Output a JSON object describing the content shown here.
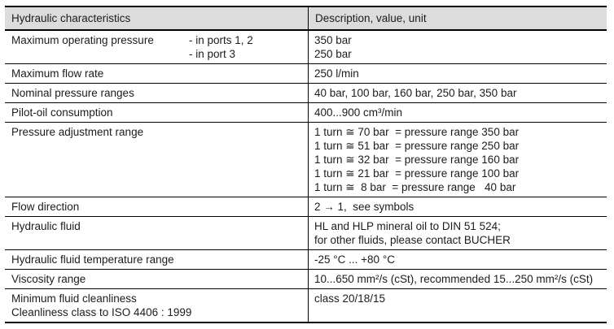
{
  "page": {
    "background": "#ffffff"
  },
  "table": {
    "header": {
      "characteristics": "Hydraulic characteristics",
      "description": "Description, value, unit"
    },
    "rows": [
      {
        "name": "maximum-operating-pressure",
        "label": "Maximum operating pressure",
        "sub_labels": [
          "- in ports 1, 2",
          "- in port 3"
        ],
        "values": [
          "350 bar",
          "250 bar"
        ]
      },
      {
        "name": "maximum-flow-rate",
        "label": "Maximum flow rate",
        "values": [
          "250 l/min"
        ]
      },
      {
        "name": "nominal-pressure-ranges",
        "label": "Nominal pressure ranges",
        "values": [
          "40 bar, 100 bar, 160 bar, 250 bar, 350 bar"
        ]
      },
      {
        "name": "pilot-oil-consumption",
        "label": "Pilot-oil consumption",
        "values": [
          "400...900 cm³/min"
        ]
      },
      {
        "name": "pressure-adjustment-range",
        "label": "Pressure adjustment range",
        "values": [
          "1 turn ≅ 70 bar  = pressure range 350 bar",
          "1 turn ≅ 51 bar  = pressure range 250 bar",
          "1 turn ≅ 32 bar  = pressure range 160 bar",
          "1 turn ≅ 21 bar  = pressure range 100 bar",
          "1 turn ≅  8 bar  = pressure range   40 bar"
        ]
      },
      {
        "name": "flow-direction",
        "label": "Flow direction",
        "values": [
          "2 → 1,  see symbols"
        ]
      },
      {
        "name": "hydraulic-fluid",
        "label": "Hydraulic fluid",
        "values": [
          "HL and HLP mineral oil to DIN 51 524;",
          "for other fluids, please contact BUCHER"
        ]
      },
      {
        "name": "hydraulic-fluid-temperature-range",
        "label": "Hydraulic fluid temperature range",
        "values": [
          "-25 °C ... +80 °C"
        ]
      },
      {
        "name": "viscosity-range",
        "label": "Viscosity range",
        "values": [
          "10...650 mm²/s (cSt), recommended 15...250 mm²/s (cSt)"
        ]
      },
      {
        "name": "minimum-fluid-cleanliness",
        "label": "Minimum fluid cleanliness",
        "label2": "Cleanliness class to ISO 4406 : 1999",
        "values": [
          "class 20/18/15"
        ]
      }
    ],
    "colors": {
      "header_bg": "#dcdcdc",
      "border": "#000000",
      "text": "#1c1c1c"
    }
  }
}
